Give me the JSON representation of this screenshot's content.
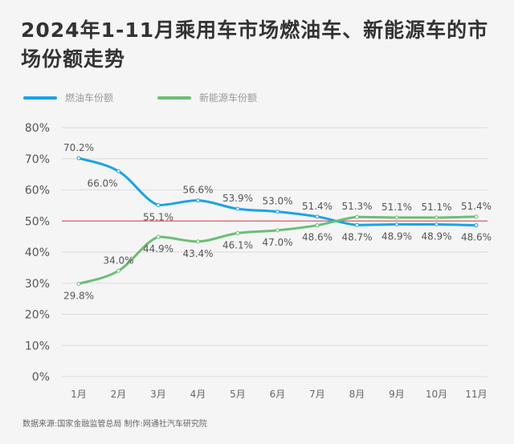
{
  "chart_data": {
    "type": "line",
    "title": "2024年1-11月乘用车市场燃油车、新能源车的市场份额走势",
    "categories": [
      "1月",
      "2月",
      "3月",
      "4月",
      "5月",
      "6月",
      "7月",
      "8月",
      "9月",
      "10月",
      "11月"
    ],
    "series": [
      {
        "name": "燃油车份额",
        "color": "#1aa3e8",
        "values": [
          70.2,
          66.0,
          55.1,
          56.6,
          53.9,
          53.0,
          51.4,
          48.7,
          48.9,
          48.9,
          48.6
        ]
      },
      {
        "name": "新能源车份额",
        "color": "#6abf73",
        "values": [
          29.8,
          34.0,
          44.9,
          43.4,
          46.1,
          47.0,
          48.6,
          51.3,
          51.1,
          51.1,
          51.4
        ]
      }
    ],
    "data_labels": [
      [
        "70.2%",
        "66.0%",
        "55.1%",
        "56.6%",
        "53.9%",
        "53.0%",
        "51.4%",
        "48.7%",
        "48.9%",
        "48.9%",
        "48.6%"
      ],
      [
        "29.8%",
        "34.0%",
        "44.9%",
        "43.4%",
        "46.1%",
        "47.0%",
        "48.6%",
        "51.3%",
        "51.1%",
        "51.1%",
        "51.4%"
      ]
    ],
    "ylim": [
      0,
      80
    ],
    "yticks": [
      "0%",
      "10%",
      "20%",
      "30%",
      "40%",
      "50%",
      "60%",
      "70%",
      "80%"
    ],
    "reference_line": {
      "value": 50,
      "color": "#e05a6a"
    },
    "grid": true,
    "legend": "top-left",
    "xlabel": "",
    "ylabel": ""
  },
  "source": "数据来源:国家金融监管总局  制作:网通社汽车研究院"
}
